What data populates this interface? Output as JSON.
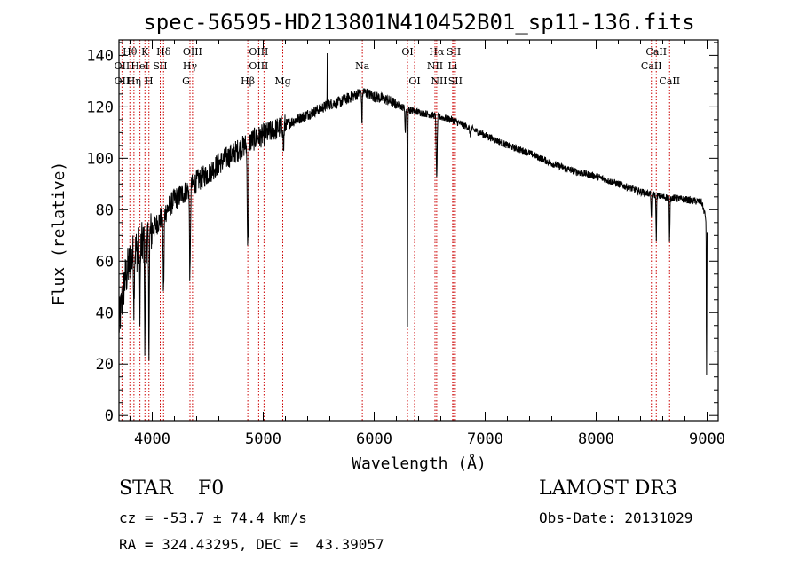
{
  "chart_data": {
    "type": "line",
    "title": "spec-56595-HD213801N410452B01_sp11-136.fits",
    "xlabel": "Wavelength (Å)",
    "ylabel": "Flux (relative)",
    "xlim": [
      3700,
      9100
    ],
    "ylim": [
      -2,
      146
    ],
    "x_ticks": [
      4000,
      5000,
      6000,
      7000,
      8000,
      9000
    ],
    "x_tick_labels": [
      "4000",
      "5000",
      "6000",
      "7000",
      "8000",
      "9000"
    ],
    "y_ticks": [
      0,
      20,
      40,
      60,
      80,
      100,
      120,
      140
    ],
    "y_tick_labels": [
      "0",
      "20",
      "40",
      "60",
      "80",
      "100",
      "120",
      "140"
    ],
    "continuum_anchors": [
      [
        3700,
        35
      ],
      [
        3750,
        52
      ],
      [
        3800,
        60
      ],
      [
        3850,
        64
      ],
      [
        3900,
        66
      ],
      [
        3950,
        68
      ],
      [
        4000,
        72
      ],
      [
        4100,
        78
      ],
      [
        4200,
        84
      ],
      [
        4300,
        87
      ],
      [
        4400,
        91
      ],
      [
        4500,
        94
      ],
      [
        4600,
        98
      ],
      [
        4700,
        101
      ],
      [
        4800,
        104
      ],
      [
        4900,
        107
      ],
      [
        5000,
        109
      ],
      [
        5100,
        111
      ],
      [
        5200,
        113
      ],
      [
        5300,
        115
      ],
      [
        5400,
        117
      ],
      [
        5500,
        119
      ],
      [
        5600,
        121
      ],
      [
        5700,
        122
      ],
      [
        5800,
        124
      ],
      [
        5900,
        126
      ],
      [
        6000,
        124
      ],
      [
        6100,
        123
      ],
      [
        6200,
        121
      ],
      [
        6300,
        119
      ],
      [
        6400,
        118
      ],
      [
        6500,
        117
      ],
      [
        6600,
        116
      ],
      [
        6700,
        115
      ],
      [
        6800,
        113
      ],
      [
        6900,
        111
      ],
      [
        7000,
        109
      ],
      [
        7200,
        105
      ],
      [
        7400,
        102
      ],
      [
        7600,
        98
      ],
      [
        7800,
        95
      ],
      [
        8000,
        93
      ],
      [
        8200,
        90
      ],
      [
        8400,
        87
      ],
      [
        8600,
        85
      ],
      [
        8800,
        84
      ],
      [
        8950,
        83
      ],
      [
        9000,
        75
      ]
    ],
    "absorption_features": [
      {
        "center": 3835,
        "depth": 20,
        "width": 4
      },
      {
        "center": 3889,
        "depth": 22,
        "width": 5
      },
      {
        "center": 3934,
        "depth": 45,
        "width": 4
      },
      {
        "center": 3970,
        "depth": 40,
        "width": 5
      },
      {
        "center": 4102,
        "depth": 30,
        "width": 6
      },
      {
        "center": 4340,
        "depth": 36,
        "width": 6
      },
      {
        "center": 4861,
        "depth": 40,
        "width": 7
      },
      {
        "center": 5183,
        "depth": 10,
        "width": 5
      },
      {
        "center": 5890,
        "depth": 12,
        "width": 4
      },
      {
        "center": 6280,
        "depth": 10,
        "width": 4
      },
      {
        "center": 6300,
        "depth": 85,
        "width": 3
      },
      {
        "center": 6563,
        "depth": 25,
        "width": 6
      },
      {
        "center": 6867,
        "depth": 3,
        "width": 8
      },
      {
        "center": 8498,
        "depth": 10,
        "width": 4
      },
      {
        "center": 8542,
        "depth": 17,
        "width": 4
      },
      {
        "center": 8662,
        "depth": 17,
        "width": 4
      },
      {
        "center": 8995,
        "depth": 60,
        "width": 3
      }
    ],
    "emission_features": [
      {
        "center": 5577,
        "height": 20,
        "width": 2
      }
    ],
    "line_markers": [
      {
        "wavelength": 3727,
        "labels": [
          "",
          "OII",
          "OII"
        ]
      },
      {
        "wavelength": 3798,
        "labels": [
          "Hθ",
          "",
          ""
        ]
      },
      {
        "wavelength": 3835,
        "labels": [
          "",
          "",
          "Hη"
        ]
      },
      {
        "wavelength": 3889,
        "labels": [
          "",
          "HeI",
          ""
        ]
      },
      {
        "wavelength": 3934,
        "labels": [
          "K",
          "",
          ""
        ]
      },
      {
        "wavelength": 3970,
        "labels": [
          "",
          "",
          "H"
        ]
      },
      {
        "wavelength": 4072,
        "labels": [
          "",
          "SII",
          ""
        ]
      },
      {
        "wavelength": 4102,
        "labels": [
          "Hδ",
          "",
          ""
        ]
      },
      {
        "wavelength": 4304,
        "labels": [
          "",
          "",
          "G"
        ]
      },
      {
        "wavelength": 4340,
        "labels": [
          "",
          "Hγ",
          ""
        ]
      },
      {
        "wavelength": 4363,
        "labels": [
          "OIII",
          "",
          ""
        ]
      },
      {
        "wavelength": 4861,
        "labels": [
          "",
          "",
          "Hβ"
        ]
      },
      {
        "wavelength": 4959,
        "labels": [
          "OIII",
          "OIII",
          ""
        ]
      },
      {
        "wavelength": 5007,
        "labels": [
          "",
          "",
          ""
        ]
      },
      {
        "wavelength": 5176,
        "labels": [
          "",
          "",
          "Mg"
        ]
      },
      {
        "wavelength": 5893,
        "labels": [
          "",
          "Na",
          ""
        ]
      },
      {
        "wavelength": 6300,
        "labels": [
          "OI",
          "",
          ""
        ]
      },
      {
        "wavelength": 6364,
        "labels": [
          "",
          "",
          "OI"
        ]
      },
      {
        "wavelength": 6548,
        "labels": [
          "",
          "NII",
          ""
        ]
      },
      {
        "wavelength": 6563,
        "labels": [
          "Hα",
          "",
          ""
        ]
      },
      {
        "wavelength": 6584,
        "labels": [
          "",
          "",
          "NII"
        ]
      },
      {
        "wavelength": 6707,
        "labels": [
          "",
          "Li",
          ""
        ]
      },
      {
        "wavelength": 6717,
        "labels": [
          "SII",
          "",
          ""
        ]
      },
      {
        "wavelength": 6731,
        "labels": [
          "",
          "",
          "SII"
        ]
      },
      {
        "wavelength": 8498,
        "labels": [
          "",
          "CaII",
          ""
        ]
      },
      {
        "wavelength": 8542,
        "labels": [
          "CaII",
          "",
          ""
        ]
      },
      {
        "wavelength": 8662,
        "labels": [
          "",
          "",
          "CaII"
        ]
      }
    ],
    "colors": {
      "spectrum": "#000000",
      "marker": "#cc0000",
      "axes": "#000000"
    }
  },
  "info": {
    "class_line": "STAR    F0",
    "cz_line": "cz = -53.7 ± 74.4 km/s",
    "coords_line": "RA = 324.43295, DEC =  43.39057",
    "survey": "LAMOST DR3",
    "obs_date": "Obs-Date: 20131029"
  }
}
